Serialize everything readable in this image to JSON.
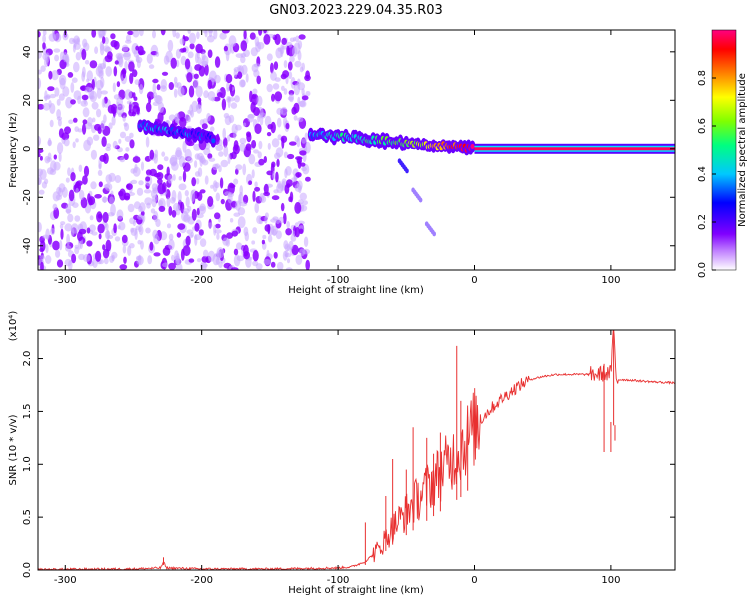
{
  "figure_title": "GN03.2023.229.04.35.R03",
  "chart_data": [
    {
      "type": "heatmap",
      "xlabel": "Height of straight line (km)",
      "ylabel": "Frequency (Hz)",
      "xlim": [
        -320,
        147
      ],
      "ylim": [
        -50,
        49
      ],
      "x_ticks": [
        -300,
        -200,
        -100,
        0,
        100
      ],
      "y_ticks": [
        -40,
        -20,
        0,
        20,
        40
      ],
      "colorbar": {
        "label": "Normalized spectral amplitude",
        "range": [
          0.0,
          1.0
        ],
        "ticks": [
          0.0,
          0.2,
          0.4,
          0.6,
          0.8
        ],
        "colors": [
          "#ffffff",
          "#8000ff",
          "#0000ff",
          "#00c8ff",
          "#00ff80",
          "#80ff00",
          "#ffff00",
          "#ff8000",
          "#ff0000",
          "#ff0080"
        ]
      },
      "noise_regions": [
        {
          "x_range": [
            -320,
            -243
          ],
          "y_range": [
            -50,
            49
          ],
          "level": 0.15
        },
        {
          "x_range": [
            -240,
            -122
          ],
          "y_range": [
            -50,
            49
          ],
          "level": 0.12
        }
      ],
      "signal_track": [
        {
          "x": -245,
          "y": 10,
          "amp": 0.2
        },
        {
          "x": -235,
          "y": 8,
          "amp": 0.25
        },
        {
          "x": -220,
          "y": 7,
          "amp": 0.2
        },
        {
          "x": -205,
          "y": 6,
          "amp": 0.15
        },
        {
          "x": -190,
          "y": 4,
          "amp": 0.15
        },
        {
          "x": -120,
          "y": 6,
          "amp": 0.25
        },
        {
          "x": -100,
          "y": 5,
          "amp": 0.3
        },
        {
          "x": -80,
          "y": 4,
          "amp": 0.35
        },
        {
          "x": -60,
          "y": 3,
          "amp": 0.4
        },
        {
          "x": -40,
          "y": 2,
          "amp": 0.5
        },
        {
          "x": -20,
          "y": 1,
          "amp": 0.7
        },
        {
          "x": 0,
          "y": 0,
          "amp": 0.9
        },
        {
          "x": 147,
          "y": 0,
          "amp": 0.9
        }
      ],
      "secondary_track": [
        {
          "x": -55,
          "y": -5
        },
        {
          "x": -45,
          "y": -17
        },
        {
          "x": -35,
          "y": -31
        }
      ]
    },
    {
      "type": "line",
      "xlabel": "Height of straight line (km)",
      "ylabel": "SNR (10 * v/v)",
      "y_multiplier": "(x10⁴)",
      "xlim": [
        -320,
        147
      ],
      "ylim": [
        0,
        2.27
      ],
      "x_ticks": [
        -300,
        -200,
        -100,
        0,
        100
      ],
      "y_ticks": [
        0.0,
        0.5,
        1.0,
        1.5,
        2.0
      ],
      "y_tick_labels": [
        "0.0",
        "0.5",
        "1.0",
        "1.5",
        "2.0"
      ],
      "color": "#e83030",
      "series": [
        {
          "x": [
            -320,
            -250,
            -230,
            -228,
            -226,
            -200,
            -150,
            -100,
            -90,
            -80,
            -70,
            -60,
            -50,
            -40,
            -30,
            -20,
            -10,
            0,
            10,
            20,
            30,
            40,
            50,
            60,
            70,
            80,
            90,
            95,
            100,
            102,
            104,
            110,
            120,
            130,
            147
          ],
          "y": [
            0.005,
            0.01,
            0.02,
            0.08,
            0.02,
            0.01,
            0.01,
            0.02,
            0.03,
            0.08,
            0.2,
            0.4,
            0.55,
            0.7,
            0.85,
            1.0,
            1.15,
            1.35,
            1.5,
            1.62,
            1.72,
            1.8,
            1.83,
            1.85,
            1.85,
            1.85,
            1.85,
            1.86,
            1.86,
            2.28,
            1.8,
            1.8,
            1.79,
            1.78,
            1.77
          ]
        }
      ],
      "spikes": [
        {
          "x": -228,
          "y": 0.12
        },
        {
          "x": -80,
          "y": 0.45
        },
        {
          "x": -65,
          "y": 0.7
        },
        {
          "x": -60,
          "y": 1.05
        },
        {
          "x": -50,
          "y": 0.95
        },
        {
          "x": -45,
          "y": 1.35
        },
        {
          "x": -35,
          "y": 1.25
        },
        {
          "x": -30,
          "y": 1.1
        },
        {
          "x": -25,
          "y": 1.3
        },
        {
          "x": -13,
          "y": 2.12
        },
        {
          "x": -10,
          "y": 1.6
        },
        {
          "x": -5,
          "y": 1.45
        },
        {
          "x": 95,
          "y": 1.95
        },
        {
          "x": 100,
          "y": 1.4
        },
        {
          "x": 102,
          "y": 2.28
        },
        {
          "x": 103,
          "y": 1.37
        }
      ]
    }
  ]
}
